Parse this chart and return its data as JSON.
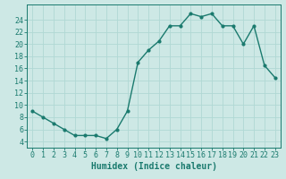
{
  "x": [
    0,
    1,
    2,
    3,
    4,
    5,
    6,
    7,
    8,
    9,
    10,
    11,
    12,
    13,
    14,
    15,
    16,
    17,
    18,
    19,
    20,
    21,
    22,
    23
  ],
  "y": [
    9,
    8,
    7,
    6,
    5,
    5,
    5,
    4.5,
    6,
    9,
    17,
    19,
    20.5,
    23,
    23,
    25,
    24.5,
    25,
    23,
    23,
    20,
    23,
    16.5,
    14.5
  ],
  "line_color": "#1a7a6e",
  "marker": "o",
  "marker_size": 2.0,
  "bg_color": "#cde8e5",
  "grid_color": "#b0d8d4",
  "xlabel": "Humidex (Indice chaleur)",
  "xlim": [
    -0.5,
    23.5
  ],
  "ylim": [
    3,
    26.5
  ],
  "yticks": [
    4,
    6,
    8,
    10,
    12,
    14,
    16,
    18,
    20,
    22,
    24
  ],
  "xticks": [
    0,
    1,
    2,
    3,
    4,
    5,
    6,
    7,
    8,
    9,
    10,
    11,
    12,
    13,
    14,
    15,
    16,
    17,
    18,
    19,
    20,
    21,
    22,
    23
  ],
  "xlabel_fontsize": 7.0,
  "tick_fontsize": 6.0,
  "line_width": 1.0
}
